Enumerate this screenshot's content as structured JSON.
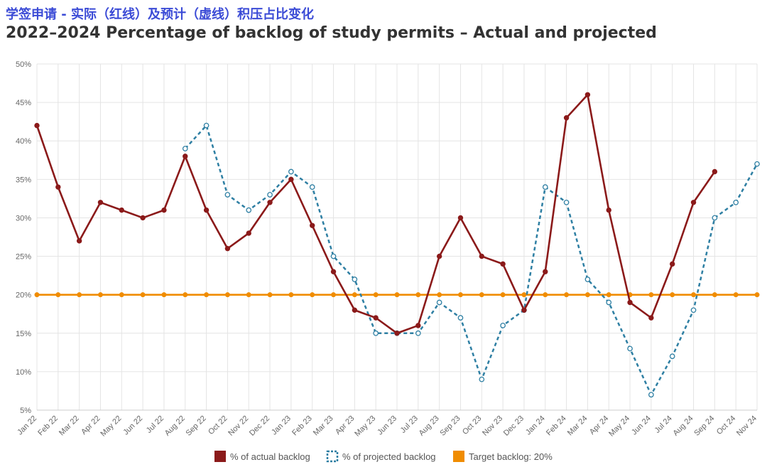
{
  "header": {
    "title_cn": "学签申请 - 实际（红线）及预计（虚线）积压占比变化",
    "title_en": "2022–2024 Percentage of backlog of study permits – Actual and projected"
  },
  "chart_data": {
    "type": "line",
    "title": "2022–2024 Percentage of backlog of study permits – Actual and projected",
    "subtitle": "学签申请 - 实际（红线）及预计（虚线）积压占比变化",
    "xlabel": "",
    "ylabel": "",
    "ylim": [
      5,
      50
    ],
    "y_ticks": [
      5,
      10,
      15,
      20,
      25,
      30,
      35,
      40,
      45,
      50
    ],
    "y_tick_labels": [
      "5%",
      "10%",
      "15%",
      "20%",
      "25%",
      "30%",
      "35%",
      "40%",
      "45%",
      "50%"
    ],
    "grid": true,
    "legend_position": "bottom-center",
    "categories": [
      "Jan 22",
      "Feb 22",
      "Mar 22",
      "Apr 22",
      "May 22",
      "Jun 22",
      "Jul 22",
      "Aug 22",
      "Sep 22",
      "Oct 22",
      "Nov 22",
      "Dec 22",
      "Jan 23",
      "Feb 23",
      "Mar 23",
      "Apr 23",
      "May 23",
      "Jun 23",
      "Jul 23",
      "Aug 23",
      "Sep 23",
      "Oct 23",
      "Nov 23",
      "Dec 23",
      "Jan 24",
      "Feb 24",
      "Mar 24",
      "Apr 24",
      "May 24",
      "Jun 24",
      "Jul 24",
      "Aug 24",
      "Sep 24",
      "Oct 24",
      "Nov 24"
    ],
    "series": [
      {
        "name": "% of actual backlog",
        "color": "#8b1a1a",
        "style": "solid",
        "values": [
          42,
          34,
          27,
          32,
          31,
          30,
          31,
          38,
          31,
          26,
          28,
          32,
          35,
          29,
          23,
          18,
          17,
          15,
          16,
          25,
          30,
          25,
          24,
          18,
          23,
          43,
          46,
          31,
          19,
          17,
          24,
          32,
          36,
          null,
          null
        ]
      },
      {
        "name": "% of projected backlog",
        "color": "#2e7fa3",
        "style": "dashed",
        "values": [
          null,
          null,
          null,
          null,
          null,
          null,
          null,
          39,
          42,
          33,
          31,
          33,
          36,
          34,
          25,
          22,
          15,
          15,
          15,
          19,
          17,
          9,
          16,
          18,
          34,
          32,
          22,
          19,
          13,
          7,
          12,
          18,
          30,
          32,
          37
        ]
      },
      {
        "name": "Target backlog: 20%",
        "color": "#f08c00",
        "style": "solid",
        "values": [
          20,
          20,
          20,
          20,
          20,
          20,
          20,
          20,
          20,
          20,
          20,
          20,
          20,
          20,
          20,
          20,
          20,
          20,
          20,
          20,
          20,
          20,
          20,
          20,
          20,
          20,
          20,
          20,
          20,
          20,
          20,
          20,
          20,
          20,
          20
        ]
      }
    ]
  }
}
